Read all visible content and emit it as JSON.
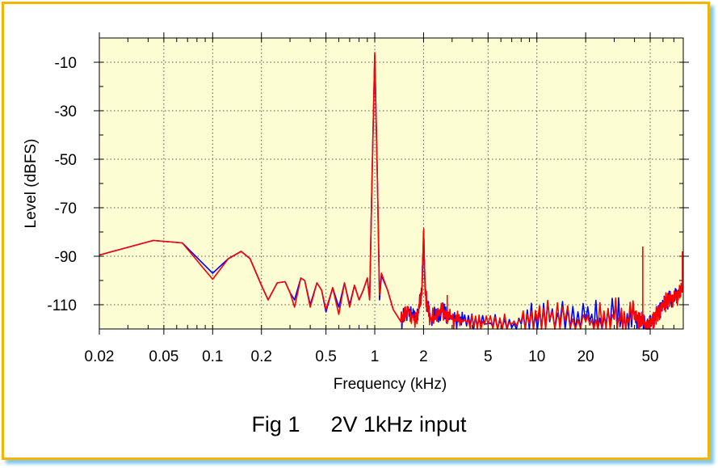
{
  "chart_data": {
    "type": "line",
    "title": "",
    "xlabel": "Frequency (kHz)",
    "ylabel": "Level (dBFS)",
    "x_scale": "log",
    "xlim": [
      0.02,
      80
    ],
    "ylim": [
      -120,
      0
    ],
    "x_ticks": [
      0.02,
      0.05,
      0.1,
      0.2,
      0.5,
      1,
      2,
      5,
      10,
      20,
      50
    ],
    "x_tick_labels": [
      "0.02",
      "0.05",
      "0.1",
      "0.2",
      "0.5",
      "1",
      "2",
      "5",
      "10",
      "20",
      "50"
    ],
    "y_ticks": [
      -10,
      -30,
      -50,
      -70,
      -90,
      -110
    ],
    "y_tick_labels": [
      "-10",
      "-30",
      "-50",
      "-70",
      "-90",
      "-110"
    ],
    "grid": true,
    "plot_background": "#fdfdd4",
    "series": [
      {
        "color": "#0000ff",
        "points": [
          [
            0.02,
            -89.5
          ],
          [
            0.043,
            -83.5
          ],
          [
            0.065,
            -84.5
          ],
          [
            0.1,
            -97
          ],
          [
            0.125,
            -91
          ],
          [
            0.15,
            -88
          ],
          [
            0.17,
            -91
          ],
          [
            0.2,
            -102
          ],
          [
            0.22,
            -108
          ],
          [
            0.25,
            -101
          ],
          [
            0.28,
            -100.5
          ],
          [
            0.3,
            -105
          ],
          [
            0.32,
            -108
          ],
          [
            0.35,
            -99
          ],
          [
            0.37,
            -100
          ],
          [
            0.4,
            -110
          ],
          [
            0.44,
            -101
          ],
          [
            0.47,
            -104
          ],
          [
            0.5,
            -113
          ],
          [
            0.55,
            -103
          ],
          [
            0.6,
            -111
          ],
          [
            0.65,
            -101
          ],
          [
            0.7,
            -110
          ],
          [
            0.75,
            -102
          ],
          [
            0.8,
            -108
          ],
          [
            0.85,
            -104
          ],
          [
            0.9,
            -99
          ],
          [
            0.93,
            -108
          ],
          [
            0.96,
            -60
          ],
          [
            1.0,
            -7
          ],
          [
            1.04,
            -60
          ],
          [
            1.07,
            -108
          ],
          [
            1.1,
            -98
          ],
          [
            1.2,
            -104
          ],
          [
            1.3,
            -112
          ],
          [
            1.45,
            -117
          ],
          [
            1.6,
            -112
          ],
          [
            1.8,
            -117
          ],
          [
            1.95,
            -106
          ],
          [
            2.0,
            -81
          ],
          [
            2.05,
            -106
          ],
          [
            2.2,
            -116
          ],
          [
            2.6,
            -113
          ],
          [
            3.0,
            -116
          ],
          [
            3.5,
            -117
          ],
          [
            5,
            -118
          ],
          [
            8,
            -118
          ],
          [
            12,
            -117
          ],
          [
            20,
            -117
          ],
          [
            30,
            -116
          ],
          [
            40,
            -116
          ],
          [
            45,
            -117
          ],
          [
            48,
            -120
          ],
          [
            50,
            -118
          ],
          [
            55,
            -114
          ],
          [
            60,
            -110
          ],
          [
            65,
            -108
          ],
          [
            72,
            -107
          ],
          [
            78,
            -104
          ]
        ]
      },
      {
        "color": "#ff0000",
        "points": [
          [
            0.02,
            -89.5
          ],
          [
            0.043,
            -83.5
          ],
          [
            0.065,
            -84.5
          ],
          [
            0.1,
            -99.5
          ],
          [
            0.125,
            -91
          ],
          [
            0.15,
            -88
          ],
          [
            0.17,
            -91
          ],
          [
            0.2,
            -102
          ],
          [
            0.22,
            -108
          ],
          [
            0.25,
            -101
          ],
          [
            0.28,
            -100.5
          ],
          [
            0.3,
            -105
          ],
          [
            0.32,
            -111
          ],
          [
            0.35,
            -99
          ],
          [
            0.37,
            -100
          ],
          [
            0.4,
            -111
          ],
          [
            0.44,
            -101
          ],
          [
            0.47,
            -104
          ],
          [
            0.5,
            -112
          ],
          [
            0.55,
            -103
          ],
          [
            0.6,
            -114
          ],
          [
            0.65,
            -101
          ],
          [
            0.7,
            -111
          ],
          [
            0.75,
            -102
          ],
          [
            0.8,
            -108
          ],
          [
            0.85,
            -104
          ],
          [
            0.9,
            -99
          ],
          [
            0.93,
            -108
          ],
          [
            0.96,
            -60
          ],
          [
            1.0,
            -6
          ],
          [
            1.04,
            -60
          ],
          [
            1.07,
            -106
          ],
          [
            1.1,
            -97
          ],
          [
            1.2,
            -104
          ],
          [
            1.3,
            -112
          ],
          [
            1.45,
            -117
          ],
          [
            1.6,
            -112
          ],
          [
            1.8,
            -117
          ],
          [
            1.95,
            -106
          ],
          [
            2.0,
            -80
          ],
          [
            2.05,
            -106
          ],
          [
            2.2,
            -116
          ],
          [
            2.6,
            -113
          ],
          [
            3.0,
            -116
          ],
          [
            3.5,
            -117
          ],
          [
            5,
            -118
          ],
          [
            8,
            -117
          ],
          [
            12,
            -116
          ],
          [
            20,
            -117
          ],
          [
            30,
            -116
          ],
          [
            40,
            -116
          ],
          [
            45,
            -117
          ],
          [
            48,
            -120
          ],
          [
            50,
            -117
          ],
          [
            55,
            -114
          ],
          [
            60,
            -110
          ],
          [
            65,
            -108
          ],
          [
            72,
            -107
          ],
          [
            78,
            -105
          ]
        ]
      }
    ],
    "spikes": [
      {
        "x": 2.8,
        "y_from": -118,
        "y_to": -106,
        "color": "#ff0000"
      },
      {
        "x": 45,
        "y_from": -118,
        "y_to": -86,
        "color": "#ff0000"
      },
      {
        "x": 80,
        "y_from": -105,
        "y_to": -88,
        "color": "#ff0000"
      }
    ]
  },
  "caption": {
    "fig": "Fig 1",
    "text": "2V 1kHz input"
  }
}
